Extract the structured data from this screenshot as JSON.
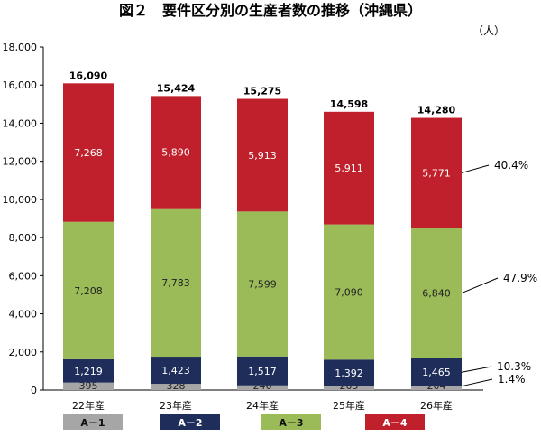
{
  "chart_data": {
    "type": "bar",
    "stacked": true,
    "title": "図２　要件区分別の生産者数の推移（沖縄県）",
    "unit_label": "（人）",
    "categories": [
      "22年産",
      "23年産",
      "24年産",
      "25年産",
      "26年産"
    ],
    "ylim": [
      0,
      18000
    ],
    "yticks": [
      "0",
      "2,000",
      "4,000",
      "6,000",
      "8,000",
      "10,000",
      "12,000",
      "14,000",
      "16,000",
      "18,000"
    ],
    "grid": false,
    "legend_position": "bottom",
    "series": [
      {
        "name": "A－1",
        "color": "#a6a6a6",
        "values": [
          395,
          328,
          246,
          205,
          204
        ],
        "labels": [
          "395",
          "328",
          "246",
          "205",
          "204"
        ]
      },
      {
        "name": "A－2",
        "color": "#1f2d5a",
        "values": [
          1219,
          1423,
          1517,
          1392,
          1465
        ],
        "labels": [
          "1,219",
          "1,423",
          "1,517",
          "1,392",
          "1,465"
        ]
      },
      {
        "name": "A－3",
        "color": "#9bbb59",
        "values": [
          7208,
          7783,
          7599,
          7090,
          6840
        ],
        "labels": [
          "7,208",
          "7,783",
          "7,599",
          "7,090",
          "6,840"
        ]
      },
      {
        "name": "A－4",
        "color": "#c0202b",
        "values": [
          7268,
          5890,
          5913,
          5911,
          5771
        ],
        "labels": [
          "7,268",
          "5,890",
          "5,913",
          "5,911",
          "5,771"
        ]
      }
    ],
    "totals": [
      16090,
      15424,
      15275,
      14598,
      14280
    ],
    "total_labels": [
      "16,090",
      "15,424",
      "15,275",
      "14,598",
      "14,280"
    ],
    "share_labels": [
      {
        "series": "A－4",
        "text": "40.4%"
      },
      {
        "series": "A－3",
        "text": "47.9%"
      },
      {
        "series": "A－2",
        "text": "10.3%"
      },
      {
        "series": "A－1",
        "text": "1.4%"
      }
    ]
  }
}
